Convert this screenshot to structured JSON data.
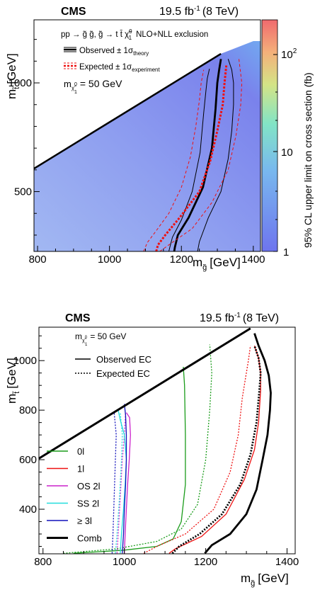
{
  "chart_data": [
    {
      "type": "heatmap",
      "title": "CMS",
      "lumi": "19.5 fb",
      "lumi_exp": "-1",
      "lumi_energy": "(8 TeV)",
      "process": "pp → g̃ g̃, g̃ → t t̄ χ̃",
      "process_sup": "0",
      "process_sub": "1",
      "process_tail": "NLO+NLL exclusion",
      "legend_observed": "Observed ± 1σ",
      "legend_observed_sub": "theory",
      "legend_expected": "Expected ± 1σ",
      "legend_expected_sub": "experiment",
      "lsp_mass": "m",
      "lsp_mass_sub": "χ̃",
      "lsp_mass_sub_sup": "0",
      "lsp_mass_sub_sub": "1",
      "lsp_mass_value": "= 50 GeV",
      "xlabel": "m",
      "xlabel_sub": "g̃",
      "xlabel_unit": "[GeV]",
      "ylabel": "m",
      "ylabel_sub": "t̃",
      "ylabel_unit": "[GeV]",
      "zlabel": "95% CL upper limit on cross section (fb)",
      "xlim": [
        790,
        1420
      ],
      "ylim": [
        225,
        1290
      ],
      "zlim": [
        1,
        200
      ],
      "zscale": "log",
      "x_ticks": [
        "800",
        "1000",
        "1200",
        "1400"
      ],
      "y_ticks": [
        "500",
        "1000"
      ],
      "z_ticks": [
        "1",
        "10",
        "10"
      ],
      "z_tick_exp": "2",
      "kinematic_boundary": {
        "x": [
          790,
          1310
        ],
        "y": [
          606,
          1134
        ]
      },
      "series": [
        {
          "name": "observed",
          "x": [
            1180,
            1182,
            1190,
            1220,
            1260,
            1285,
            1295,
            1300,
            1305,
            1310
          ],
          "y": [
            225,
            245,
            300,
            380,
            520,
            700,
            880,
            1000,
            1060,
            1110
          ]
        },
        {
          "name": "observed_plus",
          "x": [
            1245,
            1250,
            1275,
            1310,
            1330,
            1340,
            1345,
            1345,
            1340,
            1330
          ],
          "y": [
            225,
            270,
            380,
            500,
            650,
            780,
            900,
            1000,
            1060,
            1110
          ]
        },
        {
          "name": "observed_minus",
          "x": [
            1165,
            1168,
            1175,
            1200,
            1230,
            1252,
            1262,
            1268,
            1272,
            1278
          ],
          "y": [
            225,
            245,
            290,
            370,
            500,
            680,
            860,
            960,
            1020,
            1065
          ]
        },
        {
          "name": "expected",
          "x": [
            1130,
            1135,
            1155,
            1195,
            1250,
            1280,
            1300,
            1315,
            1320,
            1325
          ],
          "y": [
            225,
            255,
            300,
            380,
            500,
            640,
            780,
            900,
            1000,
            1080
          ]
        },
        {
          "name": "expected_plus",
          "x": [
            1140,
            1165,
            1230,
            1285,
            1330,
            1352,
            1365,
            1368,
            1360
          ],
          "y": [
            225,
            255,
            330,
            450,
            600,
            760,
            900,
            1000,
            1110
          ]
        },
        {
          "name": "expected_minus",
          "x": [
            1095,
            1105,
            1130,
            1165,
            1200,
            1225,
            1240,
            1250,
            1255,
            1262
          ],
          "y": [
            225,
            265,
            320,
            400,
            520,
            660,
            800,
            920,
            1000,
            1060
          ]
        }
      ]
    },
    {
      "type": "line",
      "title": "CMS",
      "lumi": "19.5 fb",
      "lumi_exp": "-1",
      "lumi_energy": "(8 TeV)",
      "lsp_mass": "m",
      "lsp_mass_sub": "χ̃",
      "lsp_mass_sub_sup": "0",
      "lsp_mass_sub_sub": "1",
      "lsp_mass_value": "= 50 GeV",
      "legend_observed": "Observed EC",
      "legend_expected": "Expected EC",
      "xlabel": "m",
      "xlabel_sub": "g̃",
      "xlabel_unit": "[GeV]",
      "ylabel": "m",
      "ylabel_sub": "t̃",
      "ylabel_unit": "[GeV]",
      "xlim": [
        790,
        1420
      ],
      "ylim": [
        220,
        1135
      ],
      "x_ticks": [
        "800",
        "1000",
        "1200",
        "1400"
      ],
      "y_ticks": [
        "400",
        "600",
        "800",
        "1000"
      ],
      "kinematic_boundary": {
        "x": [
          790,
          1310
        ],
        "y": [
          605,
          1130
        ]
      },
      "series": [
        {
          "name": "0l",
          "color": "#1a9c1a",
          "observed": {
            "x": [
              875,
              1000,
              1080,
              1120,
              1140,
              1150,
              1150,
              1148,
              1145
            ],
            "y": [
              222,
              235,
              250,
              280,
              350,
              500,
              700,
              900,
              975
            ]
          },
          "expected": {
            "x": [
              850,
              980,
              1080,
              1140,
              1180,
              1200,
              1210,
              1215,
              1210
            ],
            "y": [
              222,
              240,
              270,
              320,
              420,
              600,
              800,
              950,
              1065
            ]
          }
        },
        {
          "name": "1l",
          "color": "#ee1111",
          "observed": {
            "x": [
              1110,
              1125,
              1190,
              1250,
              1295,
              1320,
              1330,
              1335,
              1335,
              1330,
              1320
            ],
            "y": [
              222,
              240,
              290,
              380,
              520,
              640,
              750,
              880,
              950,
              1010,
              1060
            ]
          },
          "expected": {
            "x": [
              1048,
              1080,
              1150,
              1220,
              1260,
              1280,
              1290,
              1300,
              1305,
              1310
            ],
            "y": [
              222,
              250,
              300,
              400,
              550,
              700,
              850,
              950,
              1000,
              1060
            ]
          }
        },
        {
          "name": "OS 2l",
          "color": "#cc22cc",
          "observed": {
            "x": [
              1000,
              1002,
              1005,
              1008,
              1012,
              1015,
              1013,
              1005
            ],
            "y": [
              222,
              300,
              400,
              500,
              600,
              700,
              770,
              790
            ]
          },
          "expected": {
            "x": [
              982,
              985,
              990,
              995,
              1000,
              1003
            ],
            "y": [
              222,
              300,
              450,
              600,
              700,
              790
            ]
          }
        },
        {
          "name": "SS 2l",
          "color": "#22dddd",
          "observed": {
            "x": [
              990,
              993,
              998,
              1002,
              1005,
              1000,
              990,
              985
            ],
            "y": [
              222,
              300,
              400,
              500,
              600,
              700,
              760,
              800
            ]
          },
          "expected": {
            "x": [
              978,
              982,
              988,
              993,
              995,
              990
            ],
            "y": [
              222,
              300,
              450,
              600,
              700,
              790
            ]
          }
        },
        {
          "name": "≥ 3l",
          "color": "#1111bb",
          "observed": {
            "x": [
              995,
              998,
              1000,
              1003,
              1005,
              1005,
              1003,
              1000
            ],
            "y": [
              222,
              300,
              400,
              500,
              600,
              700,
              780,
              825
            ]
          },
          "expected": {
            "x": [
              970,
              972,
              975,
              978,
              980,
              975
            ],
            "y": [
              222,
              300,
              450,
              600,
              700,
              790
            ]
          }
        },
        {
          "name": "Comb",
          "color": "#000000",
          "observed": {
            "x": [
              1198,
              1215,
              1260,
              1300,
              1325,
              1340,
              1352,
              1358,
              1360,
              1355,
              1345,
              1330,
              1320
            ],
            "y": [
              222,
              255,
              300,
              380,
              480,
              600,
              700,
              800,
              870,
              940,
              1000,
              1060,
              1110
            ]
          },
          "expected": {
            "x": [
              1118,
              1135,
              1185,
              1240,
              1285,
              1310,
              1325,
              1332,
              1335,
              1330,
              1320
            ],
            "y": [
              222,
              250,
              300,
              380,
              500,
              620,
              750,
              880,
              950,
              1010,
              1060
            ]
          }
        }
      ]
    }
  ]
}
